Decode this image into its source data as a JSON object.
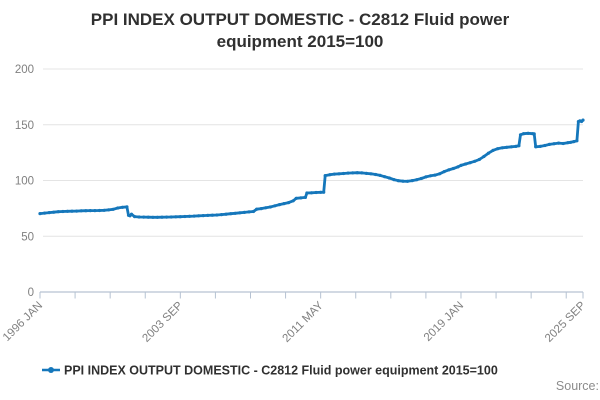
{
  "title": {
    "line1": "PPI INDEX OUTPUT DOMESTIC - C2812 Fluid power",
    "line2": "equipment 2015=100"
  },
  "legend": {
    "label": "PPI INDEX OUTPUT DOMESTIC - C2812 Fluid power equipment 2015=100"
  },
  "source_label": "Source:",
  "colors": {
    "line": "#1577bb",
    "grid": "#e4e4e4",
    "axis": "#b6c2d2",
    "tick_text": "#808080",
    "title_text": "#303030"
  },
  "chart_data": {
    "type": "line",
    "title": "PPI INDEX OUTPUT DOMESTIC - C2812 Fluid power equipment 2015=100",
    "xlabel": "",
    "ylabel": "",
    "ylim": [
      0,
      200
    ],
    "y_ticks": [
      0,
      50,
      100,
      150,
      200
    ],
    "x_range_months": [
      0,
      356
    ],
    "minor_tick_interval_months": 23,
    "x_tick_labels": [
      {
        "label": "1996 JAN",
        "month": 0
      },
      {
        "label": "2003 SEP",
        "month": 92
      },
      {
        "label": "2011 MAY",
        "month": 184
      },
      {
        "label": "2019 JAN",
        "month": 276
      },
      {
        "label": "2025 SEP",
        "month": 356
      }
    ],
    "grid": true,
    "legend_position": "bottom",
    "series": [
      {
        "name": "PPI INDEX OUTPUT DOMESTIC - C2812 Fluid power equipment 2015=100",
        "points": [
          [
            "1996-01",
            70.3
          ],
          [
            "1996-04",
            70.8
          ],
          [
            "1996-07",
            71.2
          ],
          [
            "1996-10",
            71.6
          ],
          [
            "1997-01",
            72.0
          ],
          [
            "1997-04",
            72.2
          ],
          [
            "1997-07",
            72.4
          ],
          [
            "1997-10",
            72.5
          ],
          [
            "1998-01",
            72.6
          ],
          [
            "1998-04",
            72.8
          ],
          [
            "1998-07",
            72.9
          ],
          [
            "1998-10",
            73.0
          ],
          [
            "1999-01",
            73.0
          ],
          [
            "1999-04",
            73.1
          ],
          [
            "1999-07",
            73.3
          ],
          [
            "1999-10",
            73.6
          ],
          [
            "2000-01",
            74.2
          ],
          [
            "2000-04",
            75.3
          ],
          [
            "2000-07",
            76.0
          ],
          [
            "2000-10",
            76.3
          ],
          [
            "2000-11",
            68.8
          ],
          [
            "2000-12",
            68.3
          ],
          [
            "2001-01",
            69.8
          ],
          [
            "2001-03",
            67.6
          ],
          [
            "2001-06",
            67.3
          ],
          [
            "2001-09",
            67.2
          ],
          [
            "2001-12",
            67.1
          ],
          [
            "2002-03",
            67.0
          ],
          [
            "2002-06",
            67.0
          ],
          [
            "2002-09",
            67.1
          ],
          [
            "2002-12",
            67.2
          ],
          [
            "2003-03",
            67.3
          ],
          [
            "2003-06",
            67.4
          ],
          [
            "2003-09",
            67.5
          ],
          [
            "2003-12",
            67.7
          ],
          [
            "2004-03",
            67.9
          ],
          [
            "2004-06",
            68.1
          ],
          [
            "2004-09",
            68.3
          ],
          [
            "2004-12",
            68.5
          ],
          [
            "2005-03",
            68.7
          ],
          [
            "2005-06",
            68.9
          ],
          [
            "2005-09",
            69.1
          ],
          [
            "2005-12",
            69.4
          ],
          [
            "2006-03",
            69.8
          ],
          [
            "2006-06",
            70.2
          ],
          [
            "2006-09",
            70.6
          ],
          [
            "2006-12",
            71.0
          ],
          [
            "2007-03",
            71.4
          ],
          [
            "2007-06",
            71.8
          ],
          [
            "2007-09",
            72.2
          ],
          [
            "2007-11",
            74.3
          ],
          [
            "2008-02",
            74.8
          ],
          [
            "2008-05",
            75.5
          ],
          [
            "2008-08",
            76.2
          ],
          [
            "2008-11",
            77.3
          ],
          [
            "2009-02",
            78.4
          ],
          [
            "2009-05",
            79.3
          ],
          [
            "2009-08",
            80.2
          ],
          [
            "2009-11",
            81.8
          ],
          [
            "2010-01",
            84.0
          ],
          [
            "2010-04",
            84.4
          ],
          [
            "2010-07",
            84.8
          ],
          [
            "2010-08",
            88.8
          ],
          [
            "2010-11",
            89.0
          ],
          [
            "2011-02",
            89.2
          ],
          [
            "2011-05",
            89.4
          ],
          [
            "2011-07",
            89.5
          ],
          [
            "2011-08",
            104.4
          ],
          [
            "2011-11",
            105.2
          ],
          [
            "2012-02",
            105.7
          ],
          [
            "2012-05",
            106.0
          ],
          [
            "2012-08",
            106.3
          ],
          [
            "2012-11",
            106.6
          ],
          [
            "2013-02",
            106.8
          ],
          [
            "2013-05",
            107.0
          ],
          [
            "2013-08",
            106.8
          ],
          [
            "2013-11",
            106.4
          ],
          [
            "2014-02",
            106.0
          ],
          [
            "2014-05",
            105.4
          ],
          [
            "2014-08",
            104.6
          ],
          [
            "2014-11",
            103.4
          ],
          [
            "2015-02",
            102.2
          ],
          [
            "2015-05",
            100.8
          ],
          [
            "2015-08",
            99.8
          ],
          [
            "2015-11",
            99.4
          ],
          [
            "2016-02",
            99.3
          ],
          [
            "2016-05",
            99.9
          ],
          [
            "2016-08",
            100.7
          ],
          [
            "2016-11",
            101.8
          ],
          [
            "2017-02",
            103.2
          ],
          [
            "2017-05",
            104.2
          ],
          [
            "2017-08",
            104.8
          ],
          [
            "2017-11",
            106.0
          ],
          [
            "2018-02",
            108.0
          ],
          [
            "2018-05",
            109.5
          ],
          [
            "2018-08",
            110.8
          ],
          [
            "2018-11",
            112.2
          ],
          [
            "2019-01",
            113.5
          ],
          [
            "2019-04",
            114.8
          ],
          [
            "2019-07",
            116.0
          ],
          [
            "2019-10",
            117.2
          ],
          [
            "2020-01",
            118.8
          ],
          [
            "2020-04",
            121.5
          ],
          [
            "2020-07",
            124.5
          ],
          [
            "2020-10",
            127.0
          ],
          [
            "2021-01",
            128.5
          ],
          [
            "2021-04",
            129.3
          ],
          [
            "2021-07",
            129.8
          ],
          [
            "2021-10",
            130.2
          ],
          [
            "2022-01",
            130.6
          ],
          [
            "2022-03",
            131.2
          ],
          [
            "2022-04",
            141.0
          ],
          [
            "2022-06",
            142.0
          ],
          [
            "2022-09",
            142.3
          ],
          [
            "2022-12",
            142.0
          ],
          [
            "2023-01",
            141.8
          ],
          [
            "2023-02",
            130.2
          ],
          [
            "2023-05",
            130.6
          ],
          [
            "2023-08",
            131.4
          ],
          [
            "2023-11",
            132.4
          ],
          [
            "2024-02",
            133.0
          ],
          [
            "2024-05",
            133.5
          ],
          [
            "2024-08",
            133.2
          ],
          [
            "2024-11",
            133.9
          ],
          [
            "2025-01",
            134.3
          ],
          [
            "2025-03",
            134.9
          ],
          [
            "2025-05",
            135.6
          ],
          [
            "2025-06",
            152.8
          ],
          [
            "2025-07",
            153.5
          ],
          [
            "2025-08",
            152.9
          ],
          [
            "2025-09",
            154.2
          ]
        ]
      }
    ]
  }
}
